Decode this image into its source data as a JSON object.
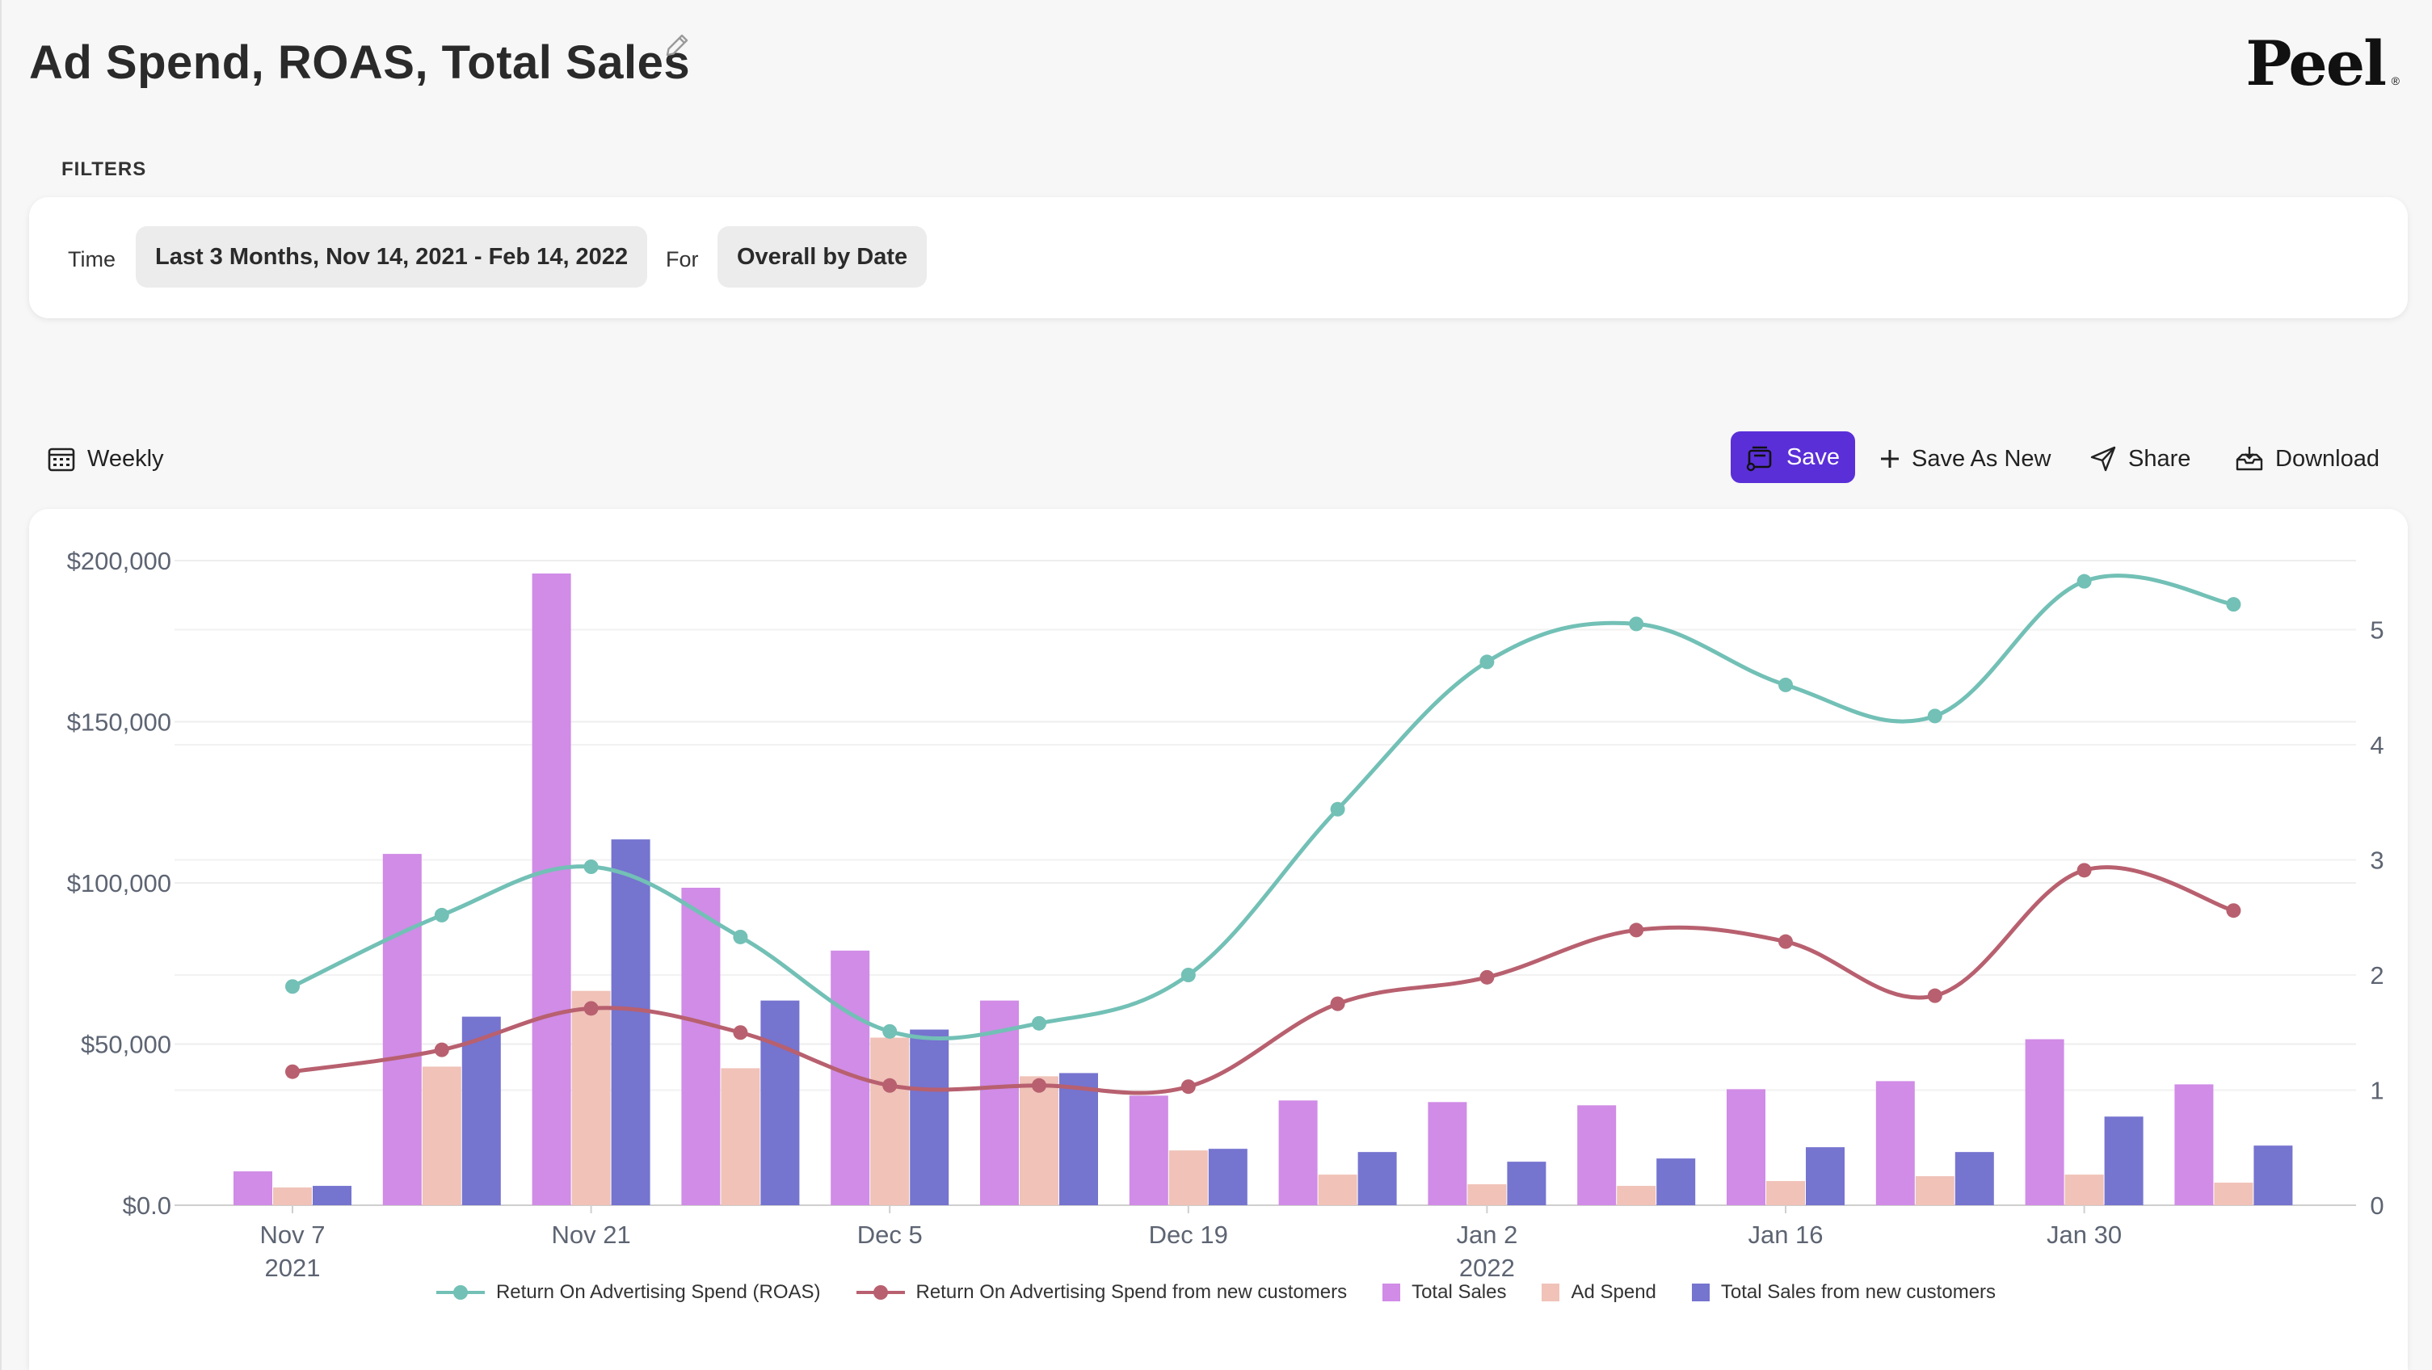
{
  "page": {
    "title": "Ad Spend, ROAS, Total Sales",
    "logo": "Peel"
  },
  "filters": {
    "section_label": "FILTERS",
    "time_label": "Time",
    "time_value": "Last 3 Months, Nov 14, 2021 - Feb 14, 2022",
    "for_label": "For",
    "for_value": "Overall by Date"
  },
  "toolbar": {
    "granularity_label": "Weekly",
    "save_label": "Save",
    "save_as_new_label": "Save As New",
    "share_label": "Share",
    "download_label": "Download"
  },
  "colors": {
    "accent": "#5a2fd8",
    "roas": "#72c0b6",
    "roas_new": "#b8606f",
    "total_sales": "#d08ce6",
    "ad_spend": "#f0c2b8",
    "total_sales_new": "#7574cf"
  },
  "chart_data": {
    "type": "bar",
    "x_dates": [
      "2021-11-07",
      "2021-11-14",
      "2021-11-21",
      "2021-11-28",
      "2021-12-05",
      "2021-12-12",
      "2021-12-19",
      "2021-12-26",
      "2022-01-02",
      "2022-01-09",
      "2022-01-16",
      "2022-01-23",
      "2022-01-30",
      "2022-02-06"
    ],
    "x_tick_labels": [
      {
        "date": "2021-11-07",
        "line1": "Nov 7",
        "line2": "2021"
      },
      {
        "date": "2021-11-21",
        "line1": "Nov 21",
        "line2": ""
      },
      {
        "date": "2021-12-05",
        "line1": "Dec 5",
        "line2": ""
      },
      {
        "date": "2021-12-19",
        "line1": "Dec 19",
        "line2": ""
      },
      {
        "date": "2022-01-02",
        "line1": "Jan 2",
        "line2": "2022"
      },
      {
        "date": "2022-01-16",
        "line1": "Jan 16",
        "line2": ""
      },
      {
        "date": "2022-01-30",
        "line1": "Jan 30",
        "line2": ""
      }
    ],
    "y_left": {
      "min": 0,
      "max": 200000,
      "ticks": [
        0,
        50000,
        100000,
        150000,
        200000
      ],
      "tick_labels": [
        "$0.0",
        "$50,000",
        "$100,000",
        "$150,000",
        "$200,000"
      ]
    },
    "y_right": {
      "min": 0,
      "max": 5.6,
      "ticks": [
        0,
        1,
        2,
        3,
        4,
        5
      ],
      "tick_labels": [
        "0",
        "1",
        "2",
        "3",
        "4",
        "5"
      ]
    },
    "grid": true,
    "legend_position": "bottom",
    "series": [
      {
        "name": "Return On Advertising Spend (ROAS)",
        "kind": "line",
        "axis": "right",
        "color": "#72c0b6",
        "values": [
          1.9,
          2.52,
          2.94,
          2.33,
          1.51,
          1.58,
          2.0,
          3.44,
          4.72,
          5.05,
          4.52,
          4.25,
          5.42,
          5.22
        ]
      },
      {
        "name": "Return On Advertising Spend from new customers",
        "kind": "line",
        "axis": "right",
        "color": "#b8606f",
        "values": [
          1.16,
          1.35,
          1.71,
          1.5,
          1.04,
          1.04,
          1.03,
          1.75,
          1.98,
          2.39,
          2.29,
          1.82,
          2.91,
          2.56
        ]
      },
      {
        "name": "Total Sales",
        "kind": "bar",
        "axis": "left",
        "color": "#d08ce6",
        "values": [
          10500,
          109000,
          196000,
          98500,
          79000,
          63500,
          34000,
          32500,
          32000,
          31000,
          36000,
          38500,
          51500,
          37500
        ]
      },
      {
        "name": "Ad Spend",
        "kind": "bar",
        "axis": "left",
        "color": "#f0c2b8",
        "values": [
          5500,
          43000,
          66500,
          42500,
          52000,
          40000,
          17000,
          9500,
          6500,
          6000,
          7500,
          9000,
          9500,
          7000
        ]
      },
      {
        "name": "Total Sales from new customers",
        "kind": "bar",
        "axis": "left",
        "color": "#7574cf",
        "values": [
          6000,
          58500,
          113500,
          63500,
          54500,
          41000,
          17500,
          16500,
          13500,
          14500,
          18000,
          16500,
          27500,
          18500
        ]
      }
    ]
  }
}
